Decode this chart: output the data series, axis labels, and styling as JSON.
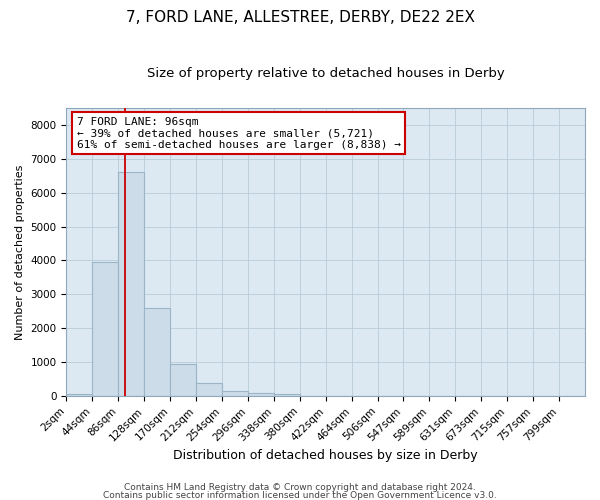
{
  "title1": "7, FORD LANE, ALLESTREE, DERBY, DE22 2EX",
  "title2": "Size of property relative to detached houses in Derby",
  "xlabel": "Distribution of detached houses by size in Derby",
  "ylabel": "Number of detached properties",
  "bar_edges": [
    2,
    44,
    86,
    128,
    170,
    212,
    254,
    296,
    338,
    380,
    422,
    464,
    506,
    547,
    589,
    631,
    673,
    715,
    757,
    799,
    841
  ],
  "bar_heights": [
    50,
    3950,
    6600,
    2600,
    950,
    380,
    140,
    100,
    60,
    0,
    0,
    0,
    0,
    0,
    0,
    0,
    0,
    0,
    0,
    0
  ],
  "bar_color": "#ccdce8",
  "bar_edge_color": "#9ab4c8",
  "vline_x": 96,
  "vline_color": "#cc0000",
  "annotation_line1": "7 FORD LANE: 96sqm",
  "annotation_line2": "← 39% of detached houses are smaller (5,721)",
  "annotation_line3": "61% of semi-detached houses are larger (8,838) →",
  "annotation_box_color": "white",
  "annotation_box_edgecolor": "#cc0000",
  "ylim": [
    0,
    8500
  ],
  "yticks": [
    0,
    1000,
    2000,
    3000,
    4000,
    5000,
    6000,
    7000,
    8000
  ],
  "grid_color": "#b8ccd8",
  "bg_color": "#dce8f2",
  "footer1": "Contains HM Land Registry data © Crown copyright and database right 2024.",
  "footer2": "Contains public sector information licensed under the Open Government Licence v3.0.",
  "title1_fontsize": 11,
  "title2_fontsize": 9.5,
  "xlabel_fontsize": 9,
  "ylabel_fontsize": 8,
  "tick_fontsize": 7.5,
  "annotation_fontsize": 8,
  "footer_fontsize": 6.5
}
